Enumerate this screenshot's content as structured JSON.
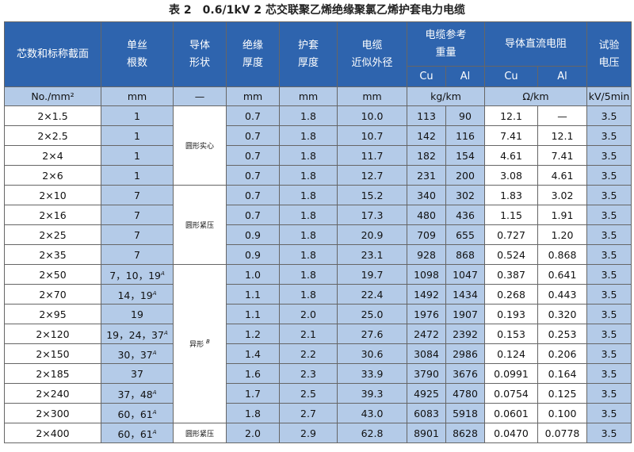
{
  "title": "表 2　0.6/1kV 2 芯交联聚乙烯绝缘聚氯乙烯护套电力电缆",
  "headers": {
    "section": "芯数和标称截面",
    "wires_l1": "单丝",
    "wires_l2": "根数",
    "shape_l1": "导体",
    "shape_l2": "形状",
    "insul_l1": "绝缘",
    "insul_l2": "厚度",
    "sheath_l1": "护套",
    "sheath_l2": "厚度",
    "od_l1": "电缆",
    "od_l2": "近似外径",
    "weight_l1": "电缆参考",
    "weight_l2": "重量",
    "res": "导体直流电阻",
    "volt_l1": "试验",
    "volt_l2": "电压",
    "cu": "Cu",
    "al": "Al",
    "cu2": "Cu",
    "al2": "Al"
  },
  "units": {
    "section": "No./mm²",
    "wires": "mm",
    "shape": "—",
    "insul": "mm",
    "sheath": "mm",
    "od": "mm",
    "weight": "kg/km",
    "res": "Ω/km",
    "volt": "kV/5min"
  },
  "shapes": [
    "圆形实心",
    "圆形紧压",
    "异形",
    "圆形紧压"
  ],
  "shape_note": "B",
  "rows": [
    {
      "section": "2×1.5",
      "wires": "1",
      "sup": "",
      "insul": "0.7",
      "sheath": "1.8",
      "od": "10.0",
      "cu_w": "113",
      "al_w": "90",
      "cu_r": "12.1",
      "al_r": "—",
      "volt": "3.5"
    },
    {
      "section": "2×2.5",
      "wires": "1",
      "sup": "",
      "insul": "0.7",
      "sheath": "1.8",
      "od": "10.7",
      "cu_w": "142",
      "al_w": "116",
      "cu_r": "7.41",
      "al_r": "12.1",
      "volt": "3.5"
    },
    {
      "section": "2×4",
      "wires": "1",
      "sup": "",
      "insul": "0.7",
      "sheath": "1.8",
      "od": "11.7",
      "cu_w": "182",
      "al_w": "154",
      "cu_r": "4.61",
      "al_r": "7.41",
      "volt": "3.5"
    },
    {
      "section": "2×6",
      "wires": "1",
      "sup": "",
      "insul": "0.7",
      "sheath": "1.8",
      "od": "12.7",
      "cu_w": "231",
      "al_w": "200",
      "cu_r": "3.08",
      "al_r": "4.61",
      "volt": "3.5"
    },
    {
      "section": "2×10",
      "wires": "7",
      "sup": "",
      "insul": "0.7",
      "sheath": "1.8",
      "od": "15.2",
      "cu_w": "340",
      "al_w": "302",
      "cu_r": "1.83",
      "al_r": "3.02",
      "volt": "3.5"
    },
    {
      "section": "2×16",
      "wires": "7",
      "sup": "",
      "insul": "0.7",
      "sheath": "1.8",
      "od": "17.3",
      "cu_w": "480",
      "al_w": "436",
      "cu_r": "1.15",
      "al_r": "1.91",
      "volt": "3.5"
    },
    {
      "section": "2×25",
      "wires": "7",
      "sup": "",
      "insul": "0.9",
      "sheath": "1.8",
      "od": "20.9",
      "cu_w": "709",
      "al_w": "655",
      "cu_r": "0.727",
      "al_r": "1.20",
      "volt": "3.5"
    },
    {
      "section": "2×35",
      "wires": "7",
      "sup": "",
      "insul": "0.9",
      "sheath": "1.8",
      "od": "23.1",
      "cu_w": "928",
      "al_w": "868",
      "cu_r": "0.524",
      "al_r": "0.868",
      "volt": "3.5"
    },
    {
      "section": "2×50",
      "wires": "7，10，19",
      "sup": "A",
      "insul": "1.0",
      "sheath": "1.8",
      "od": "19.7",
      "cu_w": "1098",
      "al_w": "1047",
      "cu_r": "0.387",
      "al_r": "0.641",
      "volt": "3.5"
    },
    {
      "section": "2×70",
      "wires": "14，19",
      "sup": "A",
      "insul": "1.1",
      "sheath": "1.8",
      "od": "22.4",
      "cu_w": "1492",
      "al_w": "1434",
      "cu_r": "0.268",
      "al_r": "0.443",
      "volt": "3.5"
    },
    {
      "section": "2×95",
      "wires": "19",
      "sup": "",
      "insul": "1.1",
      "sheath": "2.0",
      "od": "25.0",
      "cu_w": "1976",
      "al_w": "1907",
      "cu_r": "0.193",
      "al_r": "0.320",
      "volt": "3.5"
    },
    {
      "section": "2×120",
      "wires": "19，24，37",
      "sup": "A",
      "insul": "1.2",
      "sheath": "2.1",
      "od": "27.6",
      "cu_w": "2472",
      "al_w": "2392",
      "cu_r": "0.153",
      "al_r": "0.253",
      "volt": "3.5"
    },
    {
      "section": "2×150",
      "wires": "30，37",
      "sup": "A",
      "insul": "1.4",
      "sheath": "2.2",
      "od": "30.6",
      "cu_w": "3084",
      "al_w": "2986",
      "cu_r": "0.124",
      "al_r": "0.206",
      "volt": "3.5"
    },
    {
      "section": "2×185",
      "wires": "37",
      "sup": "",
      "insul": "1.6",
      "sheath": "2.3",
      "od": "33.9",
      "cu_w": "3790",
      "al_w": "3676",
      "cu_r": "0.0991",
      "al_r": "0.164",
      "volt": "3.5"
    },
    {
      "section": "2×240",
      "wires": "37，48",
      "sup": "A",
      "insul": "1.7",
      "sheath": "2.5",
      "od": "39.3",
      "cu_w": "4925",
      "al_w": "4780",
      "cu_r": "0.0754",
      "al_r": "0.125",
      "volt": "3.5"
    },
    {
      "section": "2×300",
      "wires": "60，61",
      "sup": "A",
      "insul": "1.8",
      "sheath": "2.7",
      "od": "43.0",
      "cu_w": "6083",
      "al_w": "5918",
      "cu_r": "0.0601",
      "al_r": "0.100",
      "volt": "3.5"
    },
    {
      "section": "2×400",
      "wires": "60，61",
      "sup": "A",
      "insul": "2.0",
      "sheath": "2.9",
      "od": "62.8",
      "cu_w": "8901",
      "al_w": "8628",
      "cu_r": "0.0470",
      "al_r": "0.0778",
      "volt": "3.5"
    }
  ]
}
